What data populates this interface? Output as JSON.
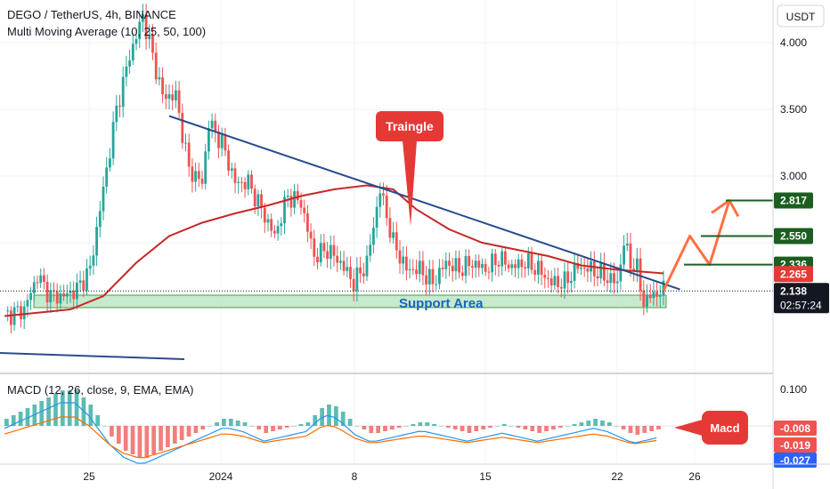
{
  "header": {
    "title": "DEGO / TetherUS, 4h, BINANCE",
    "indicator": "Multi Moving Average (10, 25, 50, 100)",
    "currency_button": "USDT"
  },
  "macd_panel": {
    "title": "MACD (12, 26, close, 9, EMA, EMA)",
    "scale_value": "0.100"
  },
  "annotations": {
    "triangle_label": "Traingle",
    "support_label": "Support Area",
    "macd_label": "Macd"
  },
  "colors": {
    "up": "#26a69a",
    "down": "#ef5350",
    "ma": "#c62828",
    "trendline": "#2a4b8d",
    "target_green": "#1b5e20",
    "projection": "#ff7043",
    "label_red": "#e53935"
  },
  "chart_data": {
    "type": "candlestick",
    "title": "DEGO / TetherUS, 4h, BINANCE",
    "ylim": [
      1.85,
      4.26
    ],
    "y_ticks": [
      "4.000",
      "3.500",
      "3.000"
    ],
    "x_ticks": [
      "25",
      "2024",
      "8",
      "15",
      "22",
      "26"
    ],
    "key_levels": [
      {
        "label": "2.817",
        "value": 2.817,
        "color": "#1b5e20"
      },
      {
        "label": "2.550",
        "value": 2.55,
        "color": "#1b5e20"
      },
      {
        "label": "2.336",
        "value": 2.336,
        "color": "#1b5e20"
      },
      {
        "label": "2.265",
        "value": 2.265,
        "color": "#e53935"
      }
    ],
    "current_price": {
      "label": "2.138",
      "value": 2.138,
      "countdown": "02:57:24"
    },
    "support_zone": [
      2.0,
      2.08
    ],
    "anchors": [
      [
        0,
        1.95
      ],
      [
        6,
        2.0
      ],
      [
        10,
        2.25
      ],
      [
        14,
        2.1
      ],
      [
        18,
        2.1
      ],
      [
        22,
        2.15
      ],
      [
        26,
        2.3
      ],
      [
        30,
        2.9
      ],
      [
        34,
        3.5
      ],
      [
        38,
        3.9
      ],
      [
        42,
        4.2
      ],
      [
        46,
        3.8
      ],
      [
        48,
        3.6
      ],
      [
        52,
        3.6
      ],
      [
        56,
        3.05
      ],
      [
        60,
        2.95
      ],
      [
        62,
        3.4
      ],
      [
        66,
        3.25
      ],
      [
        70,
        2.95
      ],
      [
        74,
        2.95
      ],
      [
        78,
        2.75
      ],
      [
        82,
        2.55
      ],
      [
        86,
        2.85
      ],
      [
        90,
        2.8
      ],
      [
        94,
        2.4
      ],
      [
        98,
        2.45
      ],
      [
        102,
        2.35
      ],
      [
        106,
        2.2
      ],
      [
        110,
        2.35
      ],
      [
        114,
        2.9
      ],
      [
        118,
        2.5
      ],
      [
        122,
        2.3
      ],
      [
        126,
        2.3
      ],
      [
        130,
        2.2
      ],
      [
        134,
        2.35
      ],
      [
        138,
        2.3
      ],
      [
        142,
        2.35
      ],
      [
        146,
        2.3
      ],
      [
        150,
        2.38
      ],
      [
        154,
        2.32
      ],
      [
        158,
        2.35
      ],
      [
        162,
        2.3
      ],
      [
        166,
        2.2
      ],
      [
        170,
        2.2
      ],
      [
        174,
        2.32
      ],
      [
        178,
        2.3
      ],
      [
        182,
        2.25
      ],
      [
        186,
        2.2
      ],
      [
        188,
        2.5
      ],
      [
        190,
        2.35
      ],
      [
        192,
        2.3
      ],
      [
        194,
        2.05
      ],
      [
        196,
        2.1
      ],
      [
        200,
        2.14
      ]
    ],
    "moving_average": [
      [
        0,
        1.95
      ],
      [
        20,
        2.0
      ],
      [
        30,
        2.1
      ],
      [
        40,
        2.35
      ],
      [
        50,
        2.55
      ],
      [
        60,
        2.65
      ],
      [
        70,
        2.72
      ],
      [
        80,
        2.78
      ],
      [
        90,
        2.85
      ],
      [
        100,
        2.9
      ],
      [
        110,
        2.93
      ],
      [
        118,
        2.9
      ],
      [
        125,
        2.75
      ],
      [
        135,
        2.6
      ],
      [
        145,
        2.5
      ],
      [
        155,
        2.45
      ],
      [
        165,
        2.4
      ],
      [
        175,
        2.33
      ],
      [
        185,
        2.3
      ],
      [
        200,
        2.27
      ]
    ],
    "trendline": {
      "from": [
        50,
        3.45
      ],
      "to": [
        205,
        2.15
      ]
    },
    "projection": [
      [
        200,
        2.14
      ],
      [
        208,
        2.55
      ],
      [
        214,
        2.336
      ],
      [
        220,
        2.817
      ]
    ],
    "macd": {
      "histogram": [
        0.02,
        0.03,
        0.04,
        0.05,
        0.06,
        0.07,
        0.08,
        0.09,
        0.1,
        0.1,
        0.1,
        0.08,
        0.06,
        0.03,
        0.0,
        -0.03,
        -0.05,
        -0.07,
        -0.08,
        -0.09,
        -0.09,
        -0.08,
        -0.07,
        -0.06,
        -0.05,
        -0.04,
        -0.03,
        -0.02,
        -0.01,
        0.0,
        0.01,
        0.02,
        0.02,
        0.015,
        0.01,
        0.0,
        -0.01,
        -0.02,
        -0.015,
        -0.01,
        -0.005,
        0.0,
        0.005,
        0.01,
        0.03,
        0.05,
        0.06,
        0.055,
        0.04,
        0.02,
        0.0,
        -0.01,
        -0.02,
        -0.02,
        -0.015,
        -0.01,
        -0.005,
        0.0,
        0.005,
        0.01,
        0.01,
        0.005,
        0.0,
        -0.005,
        -0.01,
        -0.015,
        -0.02,
        -0.015,
        -0.01,
        -0.005,
        0.0,
        0.005,
        0.0,
        -0.005,
        -0.01,
        -0.015,
        -0.02,
        -0.015,
        -0.01,
        -0.005,
        0.0,
        0.005,
        0.01,
        0.015,
        0.02,
        0.015,
        0.01,
        0.0,
        -0.01,
        -0.02,
        -0.025,
        -0.02,
        -0.015,
        -0.01
      ],
      "values_shown": [
        "-0.008",
        "-0.019",
        "-0.027"
      ]
    }
  }
}
